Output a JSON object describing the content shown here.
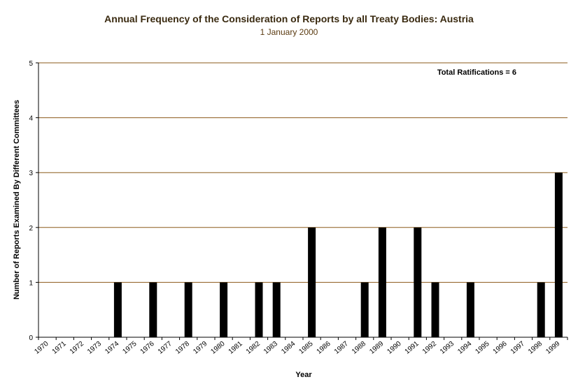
{
  "chart_data": {
    "type": "bar",
    "title": "Annual Frequency of the Consideration of Reports by all Treaty Bodies: Austria",
    "subtitle": "1 January 2000",
    "xlabel": "Year",
    "ylabel": "Number of Reports Examined By Different Committees",
    "ylim": [
      0,
      5
    ],
    "yticks": [
      "0",
      "1",
      "2",
      "3",
      "4",
      "5"
    ],
    "grid": true,
    "annotation": "Total Ratifications = 6",
    "categories": [
      "1970",
      "1971",
      "1972",
      "1973",
      "1974",
      "1975",
      "1976",
      "1977",
      "1978",
      "1979",
      "1980",
      "1981",
      "1982",
      "1983",
      "1984",
      "1985",
      "1986",
      "1987",
      "1988",
      "1989",
      "1990",
      "1991",
      "1992",
      "1993",
      "1994",
      "1995",
      "1996",
      "1997",
      "1998",
      "1999"
    ],
    "values": [
      0,
      0,
      0,
      0,
      1,
      0,
      1,
      0,
      1,
      0,
      1,
      0,
      1,
      1,
      0,
      2,
      0,
      0,
      1,
      2,
      0,
      2,
      1,
      0,
      1,
      0,
      0,
      0,
      1,
      3
    ],
    "colors": {
      "bar": "#000000",
      "grid": "#8b5a1a",
      "axis": "#000000",
      "title": "#3a2a10"
    }
  }
}
